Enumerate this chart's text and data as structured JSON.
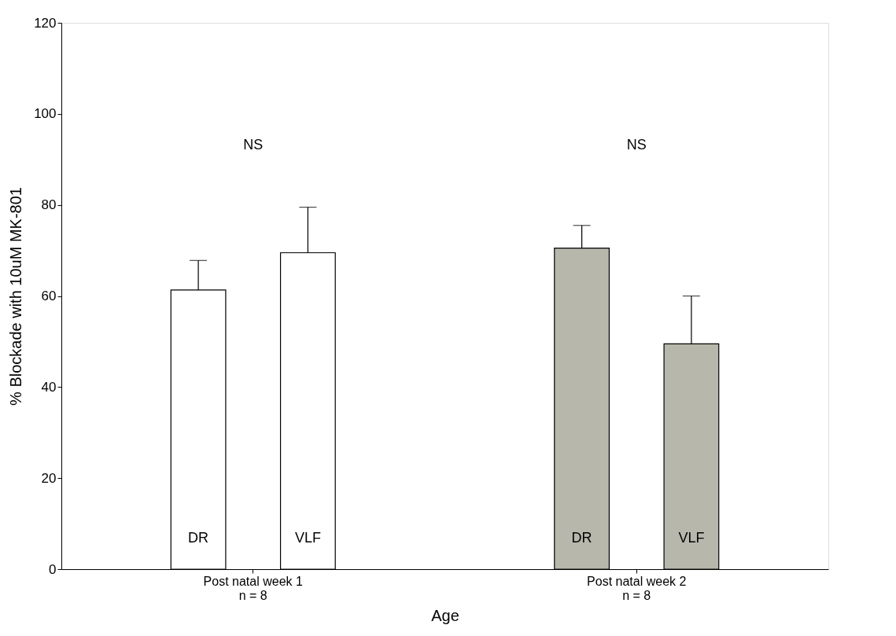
{
  "chart_data": {
    "type": "bar",
    "xlabel": "Age",
    "ylabel": "% Blockade with 10uM MK-801",
    "categories": [
      "Post natal week 1\nn = 8",
      "Post natal week 2\nn = 8"
    ],
    "series": [
      {
        "name": "DR",
        "colors": [
          "#ffffff",
          "#b8b7ac"
        ],
        "values": [
          61.3,
          70.5
        ],
        "errors": [
          [
            61.3,
            67.8
          ],
          [
            70.5,
            75.5
          ]
        ]
      },
      {
        "name": "VLF",
        "colors": [
          "#ffffff",
          "#b8b7ac"
        ],
        "values": [
          69.5,
          49.5
        ],
        "errors": [
          [
            69.5,
            79.5
          ],
          [
            49.5,
            60
          ]
        ]
      }
    ],
    "ylim": [
      0,
      120
    ],
    "yticks": [
      0,
      20,
      40,
      60,
      80,
      100,
      120
    ],
    "grid": false,
    "annotations": [
      "NS",
      "NS"
    ]
  }
}
